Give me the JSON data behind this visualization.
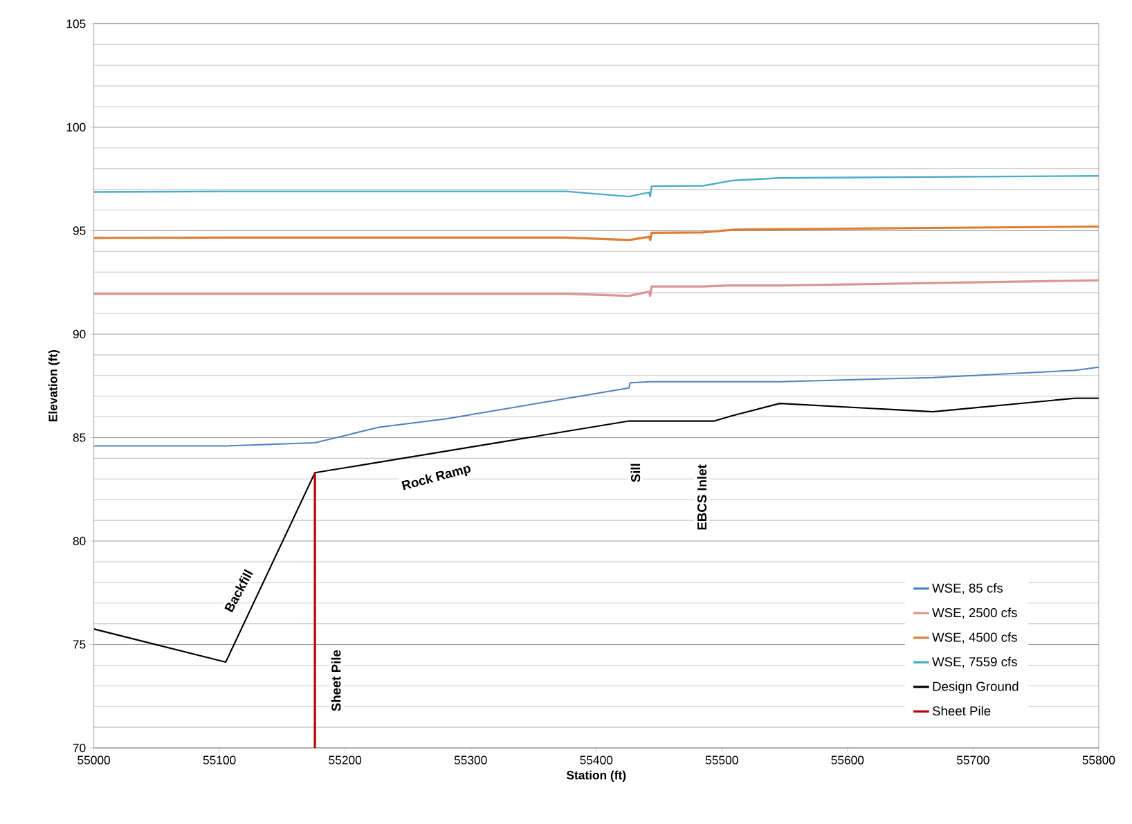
{
  "chart_data": {
    "type": "line",
    "xlabel": "Station (ft)",
    "ylabel": "Elevation (ft)",
    "xlim": [
      55000,
      55800
    ],
    "ylim": [
      70,
      105
    ],
    "xticks": [
      55000,
      55100,
      55200,
      55300,
      55400,
      55500,
      55600,
      55700,
      55800
    ],
    "yticks": [
      70,
      75,
      80,
      85,
      90,
      95,
      100,
      105
    ],
    "grid": "y",
    "legend": "bottom right",
    "series": [
      {
        "name": "WSE, 85 cfs",
        "color": "#4f81bd",
        "x": [
          55000,
          55105,
          55176,
          55227,
          55280,
          55426,
          55427,
          55443,
          55510,
          55546,
          55668,
          55781,
          55800
        ],
        "values": [
          84.6,
          84.6,
          84.75,
          85.5,
          85.9,
          87.4,
          87.65,
          87.7,
          87.7,
          87.7,
          87.9,
          88.25,
          88.4
        ]
      },
      {
        "name": "WSE, 2500 cfs",
        "color": "#d99694",
        "x": [
          55000,
          55105,
          55376,
          55426,
          55442,
          55443,
          55444,
          55485,
          55505,
          55546,
          55800
        ],
        "values": [
          91.95,
          91.95,
          91.95,
          91.85,
          92.05,
          91.85,
          92.3,
          92.3,
          92.35,
          92.35,
          92.6
        ]
      },
      {
        "name": "WSE, 4500 cfs",
        "color": "#dd7f35",
        "x": [
          55000,
          55105,
          55376,
          55426,
          55442,
          55443,
          55444,
          55485,
          55510,
          55800
        ],
        "values": [
          94.65,
          94.67,
          94.67,
          94.55,
          94.7,
          94.55,
          94.9,
          94.92,
          95.05,
          95.2
        ]
      },
      {
        "name": "WSE, 7559 cfs",
        "color": "#4bacc6",
        "x": [
          55000,
          55105,
          55376,
          55426,
          55442,
          55443,
          55444,
          55485,
          55508,
          55546,
          55800
        ],
        "values": [
          96.87,
          96.9,
          96.9,
          96.65,
          96.85,
          96.65,
          97.15,
          97.17,
          97.42,
          97.55,
          97.65
        ]
      },
      {
        "name": "Design Ground",
        "color": "#000000",
        "x": [
          55000,
          55105,
          55176,
          55426,
          55494,
          55508,
          55546,
          55668,
          55781,
          55800
        ],
        "values": [
          75.75,
          74.15,
          83.3,
          85.8,
          85.8,
          86.05,
          86.65,
          86.25,
          86.9,
          86.9
        ]
      },
      {
        "name": "Sheet Pile",
        "color": "#c00000",
        "x": [
          55176,
          55176
        ],
        "values": [
          70,
          83.3
        ]
      }
    ],
    "annotations": [
      "Backfill",
      "Rock Ramp",
      "Sill",
      "EBCS Inlet",
      "Sheet Pile"
    ]
  }
}
